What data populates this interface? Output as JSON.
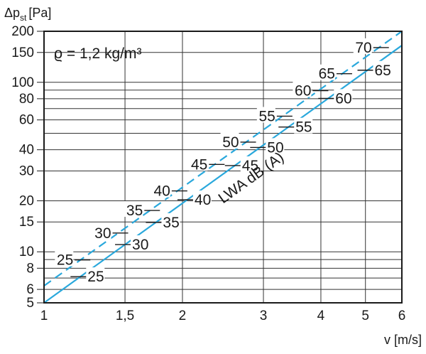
{
  "chart_data": {
    "type": "line",
    "xscale": "log",
    "yscale": "log",
    "xlim": [
      1,
      6
    ],
    "ylim": [
      5,
      200
    ],
    "xlabel": "v [m/s]",
    "ylabel": "Δp",
    "ylabel_sub": "st",
    "ylabel_unit": "[Pa]",
    "x_ticks": [
      {
        "v": 1,
        "label": "1"
      },
      {
        "v": 1.5,
        "label": "1,5"
      },
      {
        "v": 2,
        "label": "2"
      },
      {
        "v": 3,
        "label": "3"
      },
      {
        "v": 4,
        "label": "4"
      },
      {
        "v": 5,
        "label": "5"
      },
      {
        "v": 6,
        "label": "6"
      }
    ],
    "y_ticks": [
      {
        "v": 5,
        "label": "5"
      },
      {
        "v": 6,
        "label": "6"
      },
      {
        "v": 8,
        "label": "8"
      },
      {
        "v": 10,
        "label": "10"
      },
      {
        "v": 15,
        "label": "15"
      },
      {
        "v": 20,
        "label": "20"
      },
      {
        "v": 30,
        "label": "30"
      },
      {
        "v": 40,
        "label": "40"
      },
      {
        "v": 60,
        "label": "60"
      },
      {
        "v": 80,
        "label": "80"
      },
      {
        "v": 100,
        "label": "100"
      },
      {
        "v": 150,
        "label": "150"
      },
      {
        "v": 200,
        "label": "200"
      }
    ],
    "x_gridlines": [
      1.5,
      2,
      3,
      4,
      5
    ],
    "y_gridlines": [
      6,
      7,
      8,
      9,
      10,
      15,
      20,
      30,
      40,
      50,
      60,
      70,
      80,
      90,
      100,
      150
    ],
    "annotation": "ϱ = 1,2 kg/m³",
    "curve_label": "LWA dB (A)",
    "series": [
      {
        "style": "solid",
        "color": "#29a8dc",
        "points": [
          [
            1,
            5
          ],
          [
            6,
            165
          ]
        ],
        "level_marks": [
          {
            "label": "25",
            "x": 1.2,
            "y": 7.5
          },
          {
            "label": "30",
            "x": 1.5,
            "y": 11
          },
          {
            "label": "35",
            "x": 1.75,
            "y": 15
          },
          {
            "label": "40",
            "x": 2.05,
            "y": 20.5
          },
          {
            "label": "45",
            "x": 2.6,
            "y": 29
          },
          {
            "label": "50",
            "x": 2.95,
            "y": 38.5
          },
          {
            "label": "55",
            "x": 3.4,
            "y": 54
          },
          {
            "label": "60",
            "x": 4.15,
            "y": 77
          },
          {
            "label": "65",
            "x": 5.05,
            "y": 112
          }
        ]
      },
      {
        "style": "dashed",
        "color": "#29a8dc",
        "points": [
          [
            1,
            6.3
          ],
          [
            6,
            200
          ]
        ],
        "level_marks": [
          {
            "label": "25",
            "x": 1.2,
            "y": 9.5
          },
          {
            "label": "30",
            "x": 1.45,
            "y": 13.5
          },
          {
            "label": "35",
            "x": 1.7,
            "y": 18
          },
          {
            "label": "40",
            "x": 1.95,
            "y": 25
          },
          {
            "label": "45",
            "x": 2.35,
            "y": 35
          },
          {
            "label": "50",
            "x": 2.75,
            "y": 47
          },
          {
            "label": "55",
            "x": 3.3,
            "y": 64
          },
          {
            "label": "60",
            "x": 3.95,
            "y": 88
          },
          {
            "label": "65",
            "x": 4.45,
            "y": 113
          },
          {
            "label": "70",
            "x": 5.35,
            "y": 160
          }
        ]
      }
    ]
  }
}
